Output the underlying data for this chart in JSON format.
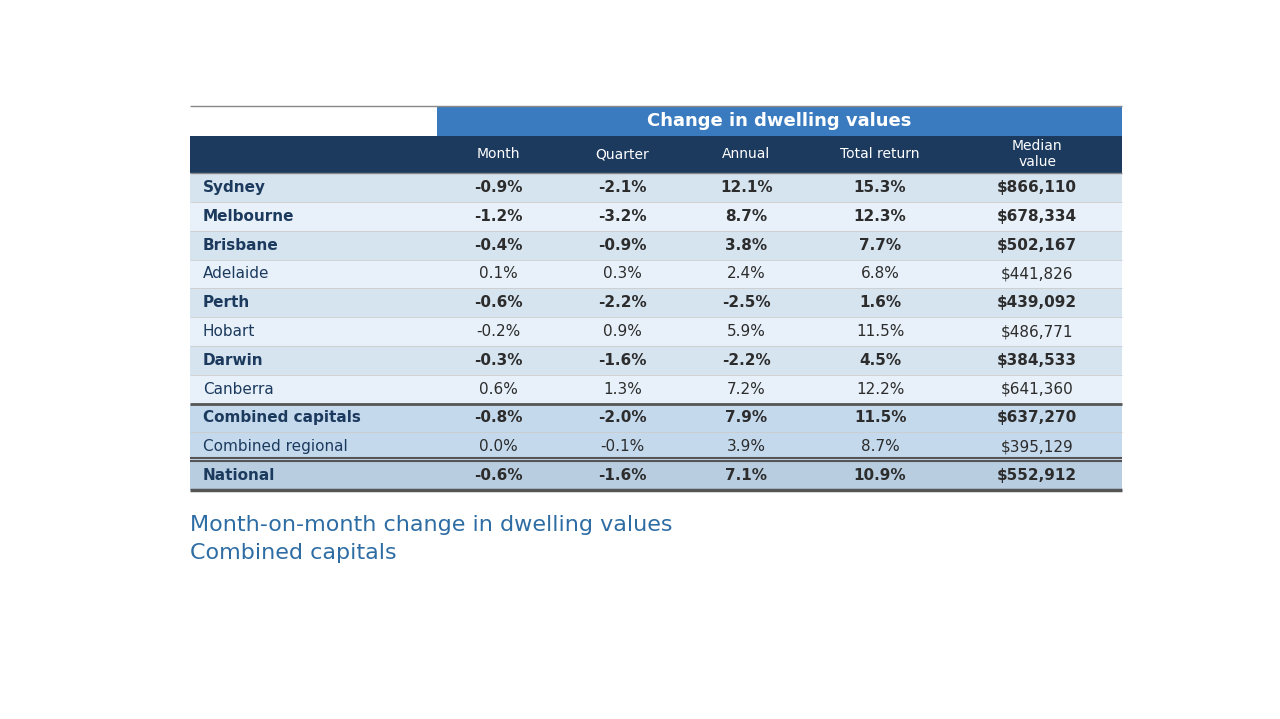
{
  "title_header": "Change in dwelling values",
  "col_headers": [
    "Month",
    "Quarter",
    "Annual",
    "Total return",
    "Median\nvalue"
  ],
  "rows": [
    {
      "city": "Sydney",
      "bold": true,
      "month": "-0.9%",
      "quarter": "-2.1%",
      "annual": "12.1%",
      "total_return": "15.3%",
      "median": "$866,110"
    },
    {
      "city": "Melbourne",
      "bold": true,
      "month": "-1.2%",
      "quarter": "-3.2%",
      "annual": "8.7%",
      "total_return": "12.3%",
      "median": "$678,334"
    },
    {
      "city": "Brisbane",
      "bold": true,
      "month": "-0.4%",
      "quarter": "-0.9%",
      "annual": "3.8%",
      "total_return": "7.7%",
      "median": "$502,167"
    },
    {
      "city": "Adelaide",
      "bold": false,
      "month": "0.1%",
      "quarter": "0.3%",
      "annual": "2.4%",
      "total_return": "6.8%",
      "median": "$441,826"
    },
    {
      "city": "Perth",
      "bold": true,
      "month": "-0.6%",
      "quarter": "-2.2%",
      "annual": "-2.5%",
      "total_return": "1.6%",
      "median": "$439,092"
    },
    {
      "city": "Hobart",
      "bold": false,
      "month": "-0.2%",
      "quarter": "0.9%",
      "annual": "5.9%",
      "total_return": "11.5%",
      "median": "$486,771"
    },
    {
      "city": "Darwin",
      "bold": true,
      "month": "-0.3%",
      "quarter": "-1.6%",
      "annual": "-2.2%",
      "total_return": "4.5%",
      "median": "$384,533"
    },
    {
      "city": "Canberra",
      "bold": false,
      "month": "0.6%",
      "quarter": "1.3%",
      "annual": "7.2%",
      "total_return": "12.2%",
      "median": "$641,360"
    },
    {
      "city": "Combined capitals",
      "bold": true,
      "month": "-0.8%",
      "quarter": "-2.0%",
      "annual": "7.9%",
      "total_return": "11.5%",
      "median": "$637,270"
    },
    {
      "city": "Combined regional",
      "bold": false,
      "month": "0.0%",
      "quarter": "-0.1%",
      "annual": "3.9%",
      "total_return": "8.7%",
      "median": "$395,129"
    },
    {
      "city": "National",
      "bold": true,
      "month": "-0.6%",
      "quarter": "-1.6%",
      "annual": "7.1%",
      "total_return": "10.9%",
      "median": "$552,912"
    }
  ],
  "subtitle": "Month-on-month change in dwelling values\nCombined capitals",
  "header_bg": "#3A7BBF",
  "header_text": "#FFFFFF",
  "col_header_bg": "#1C3A5E",
  "col_header_text": "#FFFFFF",
  "row_bg_even": "#D6E4F0",
  "row_bg_odd": "#E8F1F9",
  "summary_row_bg": "#C5D9ED",
  "national_row_bg": "#B8CDE0",
  "city_text_color": "#1C3A5E",
  "data_text_color": "#2C2C2C",
  "subtitle_color": "#2E6DA4",
  "background_color": "#FFFFFF"
}
